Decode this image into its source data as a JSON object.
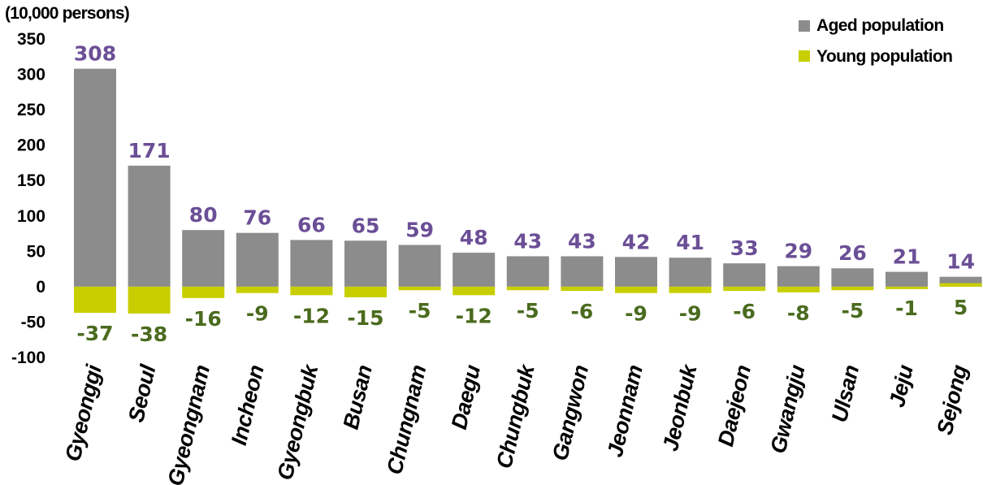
{
  "chart_data": {
    "type": "bar",
    "unit_label": "(10,000 persons)",
    "categories": [
      "Gyeonggi",
      "Seoul",
      "Gyeongnam",
      "Incheon",
      "Gyeongbuk",
      "Busan",
      "Chungnam",
      "Daegu",
      "Chungbuk",
      "Gangwon",
      "Jeonnam",
      "Jeonbuk",
      "Daejeon",
      "Gwangju",
      "Ulsan",
      "Jeju",
      "Sejong"
    ],
    "series": [
      {
        "name": "Aged population",
        "color": "#8c8c8c",
        "label_color": "#6b4f96",
        "values": [
          308,
          171,
          80,
          76,
          66,
          65,
          59,
          48,
          43,
          43,
          42,
          41,
          33,
          29,
          26,
          21,
          14
        ]
      },
      {
        "name": "Young population",
        "color": "#c8cf00",
        "label_color": "#4a6b1e",
        "values": [
          -37,
          -38,
          -16,
          -9,
          -12,
          -15,
          -5,
          -12,
          -5,
          -6,
          -9,
          -9,
          -6,
          -8,
          -5,
          -1,
          5
        ]
      }
    ],
    "ylim": [
      -100,
      350
    ],
    "yticks": [
      350,
      300,
      250,
      200,
      150,
      100,
      50,
      0,
      -50,
      -100
    ],
    "legend_position": "top-right",
    "grid": false,
    "xlabel": "",
    "ylabel": ""
  }
}
